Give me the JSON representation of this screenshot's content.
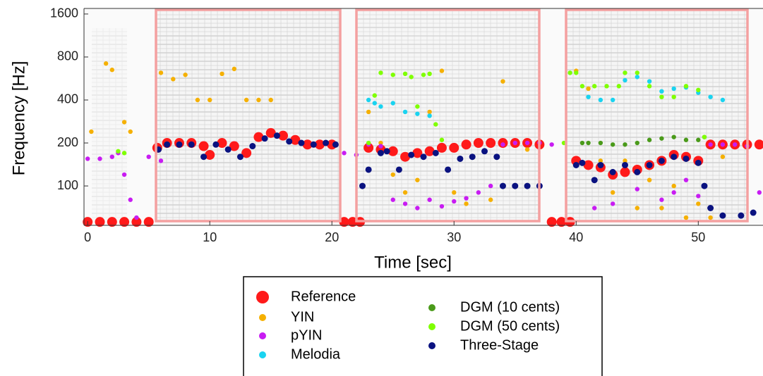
{
  "chart_data": {
    "type": "scatter",
    "x_label": "Time [sec]",
    "y_label": "Frequency [Hz]",
    "xlim": [
      -0.3,
      55.3
    ],
    "xticks": [
      0,
      10,
      20,
      30,
      40,
      50
    ],
    "ylim": [
      53,
      1750
    ],
    "yticks": [
      100,
      200,
      400,
      800,
      1600
    ],
    "log_y": true,
    "series": [
      {
        "name": "Reference",
        "color": "#ff1a1a",
        "x": [
          0,
          1,
          2,
          3,
          4,
          5,
          5.7,
          6.5,
          7.5,
          8.5,
          9.5,
          10,
          11,
          12,
          13,
          14,
          15,
          16,
          17,
          18,
          19,
          20,
          21,
          21.7,
          22.3,
          23,
          24,
          25,
          26,
          27,
          28,
          29,
          30,
          31,
          32,
          33,
          34,
          35,
          36,
          37,
          38,
          38.8,
          39.5,
          40,
          41,
          42,
          43,
          44,
          45,
          46,
          47,
          48,
          49,
          50,
          51,
          52,
          53,
          54,
          55
        ],
        "values": [
          56,
          56,
          56,
          56,
          56,
          56,
          185,
          200,
          200,
          200,
          190,
          165,
          200,
          190,
          170,
          220,
          235,
          225,
          210,
          195,
          195,
          195,
          56,
          56,
          56,
          185,
          180,
          175,
          160,
          170,
          175,
          185,
          185,
          195,
          200,
          200,
          200,
          200,
          200,
          195,
          56,
          56,
          56,
          150,
          140,
          135,
          120,
          125,
          130,
          140,
          150,
          165,
          160,
          150,
          195,
          195,
          195,
          195,
          195
        ]
      },
      {
        "name": "YIN",
        "color": "#f5b000",
        "x": [
          0.3,
          1.5,
          2,
          3,
          3.5,
          6,
          7,
          8,
          9,
          10,
          11,
          12,
          13,
          14,
          15,
          23,
          24,
          25,
          26,
          27,
          28,
          29,
          30,
          31,
          33,
          34,
          36,
          40,
          41,
          42,
          43,
          44,
          45,
          46,
          47,
          48,
          49,
          50,
          51,
          52
        ],
        "values": [
          240,
          720,
          650,
          280,
          240,
          620,
          560,
          600,
          400,
          400,
          610,
          660,
          400,
          400,
          400,
          330,
          200,
          120,
          90,
          110,
          330,
          640,
          90,
          75,
          80,
          540,
          180,
          640,
          480,
          150,
          90,
          150,
          70,
          110,
          70,
          100,
          60,
          75,
          60,
          160
        ]
      },
      {
        "name": "pYIN",
        "color": "#c81cf2",
        "x": [
          0,
          1,
          2,
          2.5,
          3,
          3.5,
          4,
          5,
          6,
          21,
          22,
          23,
          24,
          25,
          26,
          27,
          28,
          29,
          30,
          31,
          32,
          33,
          34,
          35,
          36,
          37,
          38,
          41.5,
          43,
          45,
          47,
          48,
          49,
          50,
          51,
          52,
          53,
          54,
          55
        ],
        "values": [
          155,
          155,
          160,
          170,
          120,
          80,
          60,
          160,
          150,
          170,
          165,
          195,
          190,
          80,
          75,
          70,
          80,
          72,
          78,
          82,
          90,
          100,
          195,
          200,
          200,
          200,
          195,
          70,
          75,
          95,
          80,
          90,
          110,
          85,
          195,
          195,
          195,
          190,
          90
        ]
      },
      {
        "name": "Melodia",
        "color": "#1ad3f0",
        "x": [
          23,
          23.5,
          24,
          25,
          26,
          27,
          28,
          39.5,
          41,
          42,
          43,
          44,
          45,
          46,
          47,
          48,
          49,
          50,
          51,
          52
        ],
        "values": [
          400,
          380,
          360,
          380,
          330,
          320,
          310,
          620,
          420,
          400,
          400,
          550,
          580,
          540,
          460,
          480,
          490,
          450,
          420,
          400
        ]
      },
      {
        "name": "DGM (10 cents)",
        "color": "#4a9a1a",
        "x": [
          40.5,
          41,
          42,
          43,
          44,
          45,
          46,
          47,
          48,
          49,
          50,
          50.5
        ],
        "values": [
          200,
          200,
          200,
          195,
          195,
          200,
          210,
          215,
          220,
          210,
          210,
          220
        ]
      },
      {
        "name": "DGM (50 cents)",
        "color": "#7fff00",
        "x": [
          2.5,
          3,
          23,
          23.5,
          24,
          25,
          26,
          26.5,
          27,
          27.5,
          28,
          28.5,
          29,
          39,
          39.5,
          40,
          40.5,
          41.5,
          42.5,
          43.5,
          44,
          45,
          46,
          47,
          48,
          49,
          50,
          50.5
        ],
        "values": [
          175,
          170,
          200,
          430,
          620,
          600,
          610,
          580,
          360,
          600,
          610,
          270,
          210,
          200,
          620,
          620,
          500,
          500,
          500,
          500,
          620,
          620,
          500,
          420,
          420,
          500,
          470,
          220
        ]
      },
      {
        "name": "Three-Stage",
        "color": "#0a1280",
        "x": [
          5.8,
          6.5,
          7.5,
          8.5,
          9.5,
          10.5,
          11.5,
          12.5,
          13.5,
          14.5,
          15.5,
          16.5,
          17.5,
          18.5,
          19.5,
          20.3,
          22.5,
          23,
          24,
          24.5,
          25.5,
          26.5,
          27.5,
          28.5,
          29.5,
          30.5,
          31.5,
          32.5,
          33.5,
          34,
          35,
          36,
          37,
          40,
          40.5,
          41.5,
          42,
          43,
          44,
          45,
          46,
          47,
          48,
          49,
          50,
          50.5,
          51,
          52,
          53.5,
          54.5
        ],
        "values": [
          180,
          195,
          195,
          195,
          160,
          195,
          180,
          160,
          190,
          215,
          225,
          205,
          200,
          195,
          200,
          195,
          100,
          130,
          170,
          175,
          130,
          165,
          160,
          170,
          130,
          155,
          160,
          175,
          160,
          100,
          100,
          100,
          100,
          140,
          145,
          110,
          140,
          125,
          140,
          125,
          140,
          150,
          160,
          155,
          145,
          100,
          70,
          62,
          62,
          65
        ]
      }
    ]
  }
}
